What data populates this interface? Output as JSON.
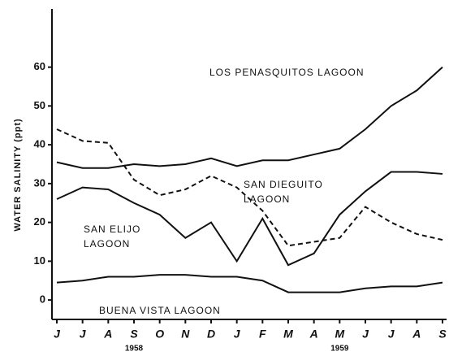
{
  "chart_data": {
    "type": "line",
    "ylabel": "WATER SALINITY (ppt)",
    "categories": [
      "J",
      "J",
      "A",
      "S",
      "O",
      "N",
      "D",
      "J",
      "F",
      "M",
      "A",
      "M",
      "J",
      "J",
      "A",
      "S"
    ],
    "years": [
      {
        "index": 3,
        "label": "1958"
      },
      {
        "index": 11,
        "label": "1959"
      }
    ],
    "ylim": [
      -5,
      75
    ],
    "yticks": [
      0,
      10,
      20,
      30,
      40,
      50,
      60
    ],
    "series": [
      {
        "label": [
          "LOS PENASQUITOS LAGOON"
        ],
        "color": "#111",
        "dash": false,
        "values": [
          35.5,
          34,
          34,
          35,
          34.5,
          35,
          36.5,
          34.5,
          36,
          36,
          37.5,
          39,
          44,
          50,
          54,
          60
        ]
      },
      {
        "label": [
          "SAN DIEGUITO",
          "LAGOON"
        ],
        "color": "#111",
        "dash": true,
        "values": [
          44,
          41,
          40.5,
          31,
          27,
          28.5,
          32,
          29,
          23,
          14,
          15,
          16,
          24,
          20,
          17,
          15.5
        ]
      },
      {
        "label": [
          "SAN ELIJO",
          "LAGOON"
        ],
        "color": "#111",
        "dash": false,
        "values": [
          26,
          29,
          28.5,
          25,
          22,
          16,
          20,
          10,
          21,
          9,
          12,
          22,
          28,
          33,
          33,
          32.5
        ]
      },
      {
        "label": [
          "BUENA VISTA LAGOON"
        ],
        "color": "#111",
        "dash": false,
        "values": [
          4.5,
          5,
          6,
          6,
          6.5,
          6.5,
          6,
          6,
          5,
          2,
          2,
          2,
          3,
          3.5,
          3.5,
          4.5
        ]
      }
    ]
  }
}
